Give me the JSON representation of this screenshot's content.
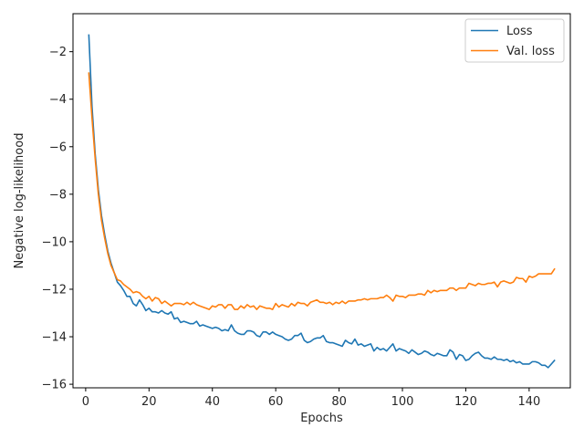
{
  "chart_data": {
    "type": "line",
    "xlabel": "Epochs",
    "ylabel": "Negative log-likelihood",
    "xlim": [
      -4,
      153
    ],
    "ylim": [
      -16.15,
      -0.4
    ],
    "xticks": [
      0,
      20,
      40,
      60,
      80,
      100,
      120,
      140
    ],
    "yticks": [
      -16,
      -14,
      -12,
      -10,
      -8,
      -6,
      -4,
      -2
    ],
    "xtick_labels": [
      "0",
      "20",
      "40",
      "60",
      "80",
      "100",
      "120",
      "140"
    ],
    "ytick_labels": [
      "−16",
      "−14",
      "−12",
      "−10",
      "−8",
      "−6",
      "−4",
      "−2"
    ],
    "grid": false,
    "legend_position": "top-right",
    "series": [
      {
        "name": "Loss",
        "color": "#1f77b4",
        "points": [
          [
            1,
            -1.3
          ],
          [
            2,
            -4.3
          ],
          [
            3,
            -6.3
          ],
          [
            4,
            -7.8
          ],
          [
            5,
            -8.9
          ],
          [
            6,
            -9.7
          ],
          [
            7,
            -10.4
          ],
          [
            8,
            -10.9
          ],
          [
            9,
            -11.3
          ],
          [
            10,
            -11.7
          ],
          [
            11,
            -11.85
          ],
          [
            12,
            -12.05
          ],
          [
            13,
            -12.3
          ],
          [
            14,
            -12.3
          ],
          [
            15,
            -12.6
          ],
          [
            16,
            -12.7
          ],
          [
            17,
            -12.45
          ],
          [
            18,
            -12.65
          ],
          [
            19,
            -12.9
          ],
          [
            20,
            -12.8
          ],
          [
            21,
            -12.95
          ],
          [
            22,
            -12.95
          ],
          [
            23,
            -13.0
          ],
          [
            24,
            -12.9
          ],
          [
            25,
            -13.0
          ],
          [
            26,
            -13.05
          ],
          [
            27,
            -12.95
          ],
          [
            28,
            -13.25
          ],
          [
            29,
            -13.2
          ],
          [
            30,
            -13.4
          ],
          [
            31,
            -13.35
          ],
          [
            32,
            -13.4
          ],
          [
            33,
            -13.45
          ],
          [
            34,
            -13.45
          ],
          [
            35,
            -13.35
          ],
          [
            36,
            -13.55
          ],
          [
            37,
            -13.5
          ],
          [
            38,
            -13.55
          ],
          [
            39,
            -13.6
          ],
          [
            40,
            -13.65
          ],
          [
            41,
            -13.6
          ],
          [
            42,
            -13.65
          ],
          [
            43,
            -13.75
          ],
          [
            44,
            -13.7
          ],
          [
            45,
            -13.75
          ],
          [
            46,
            -13.5
          ],
          [
            47,
            -13.75
          ],
          [
            48,
            -13.85
          ],
          [
            49,
            -13.9
          ],
          [
            50,
            -13.9
          ],
          [
            51,
            -13.75
          ],
          [
            52,
            -13.75
          ],
          [
            53,
            -13.8
          ],
          [
            54,
            -13.95
          ],
          [
            55,
            -14.0
          ],
          [
            56,
            -13.8
          ],
          [
            57,
            -13.8
          ],
          [
            58,
            -13.9
          ],
          [
            59,
            -13.8
          ],
          [
            60,
            -13.9
          ],
          [
            61,
            -13.95
          ],
          [
            62,
            -14.0
          ],
          [
            63,
            -14.1
          ],
          [
            64,
            -14.15
          ],
          [
            65,
            -14.1
          ],
          [
            66,
            -13.95
          ],
          [
            67,
            -13.95
          ],
          [
            68,
            -13.85
          ],
          [
            69,
            -14.15
          ],
          [
            70,
            -14.25
          ],
          [
            71,
            -14.2
          ],
          [
            72,
            -14.1
          ],
          [
            73,
            -14.05
          ],
          [
            74,
            -14.05
          ],
          [
            75,
            -13.95
          ],
          [
            76,
            -14.2
          ],
          [
            77,
            -14.25
          ],
          [
            78,
            -14.25
          ],
          [
            79,
            -14.3
          ],
          [
            80,
            -14.35
          ],
          [
            81,
            -14.4
          ],
          [
            82,
            -14.15
          ],
          [
            83,
            -14.25
          ],
          [
            84,
            -14.3
          ],
          [
            85,
            -14.1
          ],
          [
            86,
            -14.35
          ],
          [
            87,
            -14.3
          ],
          [
            88,
            -14.4
          ],
          [
            89,
            -14.35
          ],
          [
            90,
            -14.3
          ],
          [
            91,
            -14.6
          ],
          [
            92,
            -14.45
          ],
          [
            93,
            -14.55
          ],
          [
            94,
            -14.5
          ],
          [
            95,
            -14.6
          ],
          [
            96,
            -14.45
          ],
          [
            97,
            -14.3
          ],
          [
            98,
            -14.6
          ],
          [
            99,
            -14.5
          ],
          [
            100,
            -14.55
          ],
          [
            101,
            -14.6
          ],
          [
            102,
            -14.7
          ],
          [
            103,
            -14.55
          ],
          [
            104,
            -14.65
          ],
          [
            105,
            -14.75
          ],
          [
            106,
            -14.7
          ],
          [
            107,
            -14.6
          ],
          [
            108,
            -14.65
          ],
          [
            109,
            -14.75
          ],
          [
            110,
            -14.8
          ],
          [
            111,
            -14.7
          ],
          [
            112,
            -14.75
          ],
          [
            113,
            -14.8
          ],
          [
            114,
            -14.8
          ],
          [
            115,
            -14.55
          ],
          [
            116,
            -14.65
          ],
          [
            117,
            -14.95
          ],
          [
            118,
            -14.75
          ],
          [
            119,
            -14.8
          ],
          [
            120,
            -15.0
          ],
          [
            121,
            -14.95
          ],
          [
            122,
            -14.8
          ],
          [
            123,
            -14.7
          ],
          [
            124,
            -14.65
          ],
          [
            125,
            -14.8
          ],
          [
            126,
            -14.9
          ],
          [
            127,
            -14.9
          ],
          [
            128,
            -14.95
          ],
          [
            129,
            -14.85
          ],
          [
            130,
            -14.95
          ],
          [
            131,
            -14.95
          ],
          [
            132,
            -15.0
          ],
          [
            133,
            -14.95
          ],
          [
            134,
            -15.05
          ],
          [
            135,
            -15.0
          ],
          [
            136,
            -15.1
          ],
          [
            137,
            -15.05
          ],
          [
            138,
            -15.15
          ],
          [
            139,
            -15.15
          ],
          [
            140,
            -15.15
          ],
          [
            141,
            -15.05
          ],
          [
            142,
            -15.05
          ],
          [
            143,
            -15.1
          ],
          [
            144,
            -15.2
          ],
          [
            145,
            -15.2
          ],
          [
            146,
            -15.3
          ],
          [
            147,
            -15.15
          ],
          [
            148,
            -15.0
          ]
        ]
      },
      {
        "name": "Val. loss",
        "color": "#ff7f0e",
        "points": [
          [
            1,
            -2.9
          ],
          [
            2,
            -4.8
          ],
          [
            3,
            -6.5
          ],
          [
            4,
            -8.0
          ],
          [
            5,
            -9.1
          ],
          [
            6,
            -9.85
          ],
          [
            7,
            -10.5
          ],
          [
            8,
            -11.0
          ],
          [
            9,
            -11.3
          ],
          [
            10,
            -11.6
          ],
          [
            11,
            -11.65
          ],
          [
            12,
            -11.8
          ],
          [
            13,
            -11.9
          ],
          [
            14,
            -12.0
          ],
          [
            15,
            -12.15
          ],
          [
            16,
            -12.1
          ],
          [
            17,
            -12.15
          ],
          [
            18,
            -12.3
          ],
          [
            19,
            -12.4
          ],
          [
            20,
            -12.3
          ],
          [
            21,
            -12.5
          ],
          [
            22,
            -12.35
          ],
          [
            23,
            -12.4
          ],
          [
            24,
            -12.6
          ],
          [
            25,
            -12.5
          ],
          [
            26,
            -12.6
          ],
          [
            27,
            -12.7
          ],
          [
            28,
            -12.6
          ],
          [
            29,
            -12.6
          ],
          [
            30,
            -12.6
          ],
          [
            31,
            -12.65
          ],
          [
            32,
            -12.55
          ],
          [
            33,
            -12.65
          ],
          [
            34,
            -12.55
          ],
          [
            35,
            -12.65
          ],
          [
            36,
            -12.7
          ],
          [
            37,
            -12.75
          ],
          [
            38,
            -12.8
          ],
          [
            39,
            -12.85
          ],
          [
            40,
            -12.7
          ],
          [
            41,
            -12.75
          ],
          [
            42,
            -12.65
          ],
          [
            43,
            -12.65
          ],
          [
            44,
            -12.8
          ],
          [
            45,
            -12.65
          ],
          [
            46,
            -12.65
          ],
          [
            47,
            -12.85
          ],
          [
            48,
            -12.85
          ],
          [
            49,
            -12.7
          ],
          [
            50,
            -12.8
          ],
          [
            51,
            -12.65
          ],
          [
            52,
            -12.75
          ],
          [
            53,
            -12.7
          ],
          [
            54,
            -12.85
          ],
          [
            55,
            -12.7
          ],
          [
            56,
            -12.75
          ],
          [
            57,
            -12.8
          ],
          [
            58,
            -12.8
          ],
          [
            59,
            -12.85
          ],
          [
            60,
            -12.6
          ],
          [
            61,
            -12.75
          ],
          [
            62,
            -12.65
          ],
          [
            63,
            -12.7
          ],
          [
            64,
            -12.75
          ],
          [
            65,
            -12.6
          ],
          [
            66,
            -12.7
          ],
          [
            67,
            -12.55
          ],
          [
            68,
            -12.6
          ],
          [
            69,
            -12.6
          ],
          [
            70,
            -12.7
          ],
          [
            71,
            -12.55
          ],
          [
            72,
            -12.5
          ],
          [
            73,
            -12.45
          ],
          [
            74,
            -12.55
          ],
          [
            75,
            -12.55
          ],
          [
            76,
            -12.6
          ],
          [
            77,
            -12.55
          ],
          [
            78,
            -12.65
          ],
          [
            79,
            -12.55
          ],
          [
            80,
            -12.6
          ],
          [
            81,
            -12.5
          ],
          [
            82,
            -12.6
          ],
          [
            83,
            -12.5
          ],
          [
            84,
            -12.5
          ],
          [
            85,
            -12.5
          ],
          [
            86,
            -12.45
          ],
          [
            87,
            -12.45
          ],
          [
            88,
            -12.4
          ],
          [
            89,
            -12.45
          ],
          [
            90,
            -12.4
          ],
          [
            91,
            -12.4
          ],
          [
            92,
            -12.4
          ],
          [
            93,
            -12.35
          ],
          [
            94,
            -12.35
          ],
          [
            95,
            -12.25
          ],
          [
            96,
            -12.35
          ],
          [
            97,
            -12.5
          ],
          [
            98,
            -12.25
          ],
          [
            99,
            -12.3
          ],
          [
            100,
            -12.3
          ],
          [
            101,
            -12.35
          ],
          [
            102,
            -12.25
          ],
          [
            103,
            -12.25
          ],
          [
            104,
            -12.25
          ],
          [
            105,
            -12.2
          ],
          [
            106,
            -12.2
          ],
          [
            107,
            -12.25
          ],
          [
            108,
            -12.05
          ],
          [
            109,
            -12.15
          ],
          [
            110,
            -12.05
          ],
          [
            111,
            -12.1
          ],
          [
            112,
            -12.05
          ],
          [
            113,
            -12.05
          ],
          [
            114,
            -12.05
          ],
          [
            115,
            -11.95
          ],
          [
            116,
            -11.95
          ],
          [
            117,
            -12.05
          ],
          [
            118,
            -11.95
          ],
          [
            119,
            -11.95
          ],
          [
            120,
            -11.95
          ],
          [
            121,
            -11.75
          ],
          [
            122,
            -11.8
          ],
          [
            123,
            -11.85
          ],
          [
            124,
            -11.75
          ],
          [
            125,
            -11.8
          ],
          [
            126,
            -11.8
          ],
          [
            127,
            -11.75
          ],
          [
            128,
            -11.75
          ],
          [
            129,
            -11.7
          ],
          [
            130,
            -11.9
          ],
          [
            131,
            -11.7
          ],
          [
            132,
            -11.65
          ],
          [
            133,
            -11.7
          ],
          [
            134,
            -11.75
          ],
          [
            135,
            -11.7
          ],
          [
            136,
            -11.5
          ],
          [
            137,
            -11.55
          ],
          [
            138,
            -11.55
          ],
          [
            139,
            -11.7
          ],
          [
            140,
            -11.45
          ],
          [
            141,
            -11.5
          ],
          [
            142,
            -11.45
          ],
          [
            143,
            -11.35
          ],
          [
            144,
            -11.35
          ],
          [
            145,
            -11.35
          ],
          [
            146,
            -11.35
          ],
          [
            147,
            -11.35
          ],
          [
            148,
            -11.15
          ]
        ]
      }
    ]
  }
}
